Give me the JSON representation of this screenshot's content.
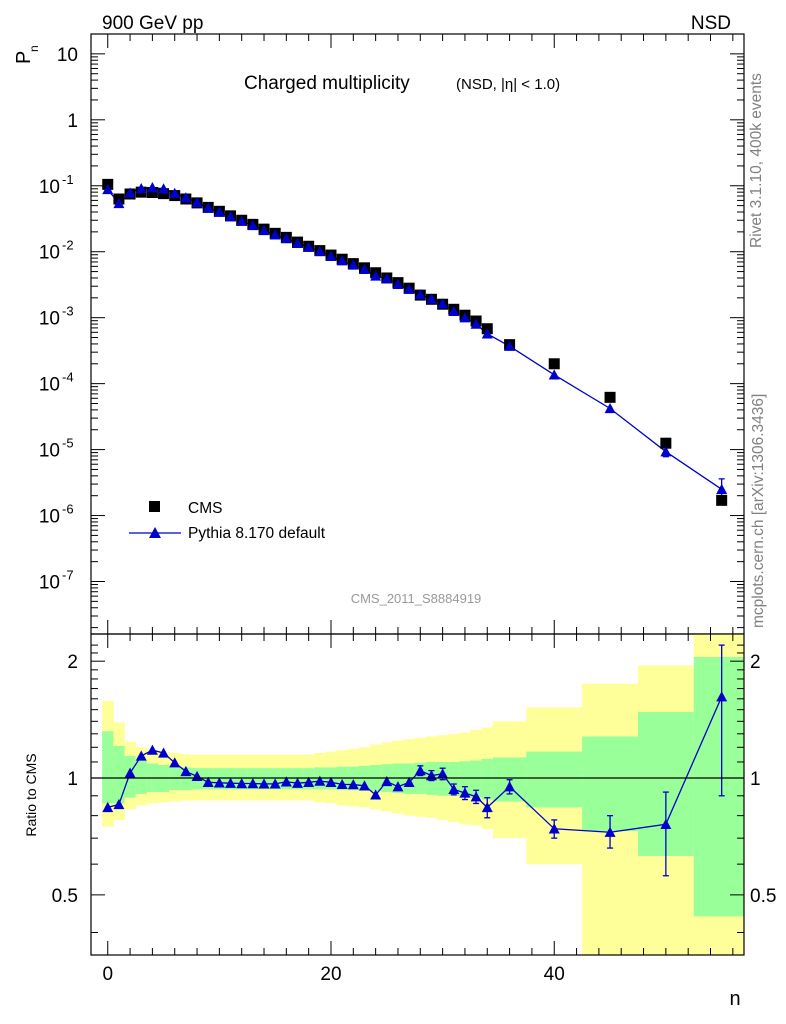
{
  "header": {
    "left": "900 GeV pp",
    "right": "NSD"
  },
  "side_text": {
    "rivet": "Rivet 3.1.10,  400k events",
    "source": "mcplots.cern.ch [arXiv:1306.3436]"
  },
  "analysis_id": "CMS_2011_S8884919",
  "colors": {
    "mc": "#0000cc",
    "data": "#000000",
    "band_inner": "#99ff99",
    "band_outer": "#ffff99"
  },
  "chart_data": [
    {
      "type": "scatter",
      "panel": "main",
      "title": {
        "main": "Charged multiplicity",
        "sub": "(NSD, |η| < 1.0)"
      },
      "ylabel": "P",
      "ylabel_sub": "n",
      "yscale": "log",
      "ylim": [
        1.6e-08,
        20
      ],
      "ytick_labels": [
        {
          "value": 10,
          "base": "10",
          "exp": ""
        },
        {
          "value": 1,
          "base": "1",
          "exp": ""
        },
        {
          "value": 0.1,
          "base": "10",
          "exp": "-1"
        },
        {
          "value": 0.01,
          "base": "10",
          "exp": "-2"
        },
        {
          "value": 0.001,
          "base": "10",
          "exp": "-3"
        },
        {
          "value": 0.0001,
          "base": "10",
          "exp": "-4"
        },
        {
          "value": 1e-05,
          "base": "10",
          "exp": "-5"
        },
        {
          "value": 1e-06,
          "base": "10",
          "exp": "-6"
        },
        {
          "value": 1e-07,
          "base": "10",
          "exp": "-7"
        }
      ],
      "legend": [
        {
          "name": "CMS",
          "marker": "square"
        },
        {
          "name": "Pythia 8.170 default",
          "marker": "triangle"
        }
      ],
      "series": [
        {
          "name": "CMS",
          "x": [
            0,
            1,
            2,
            3,
            4,
            5,
            6,
            7,
            8,
            9,
            10,
            11,
            12,
            13,
            14,
            15,
            16,
            17,
            18,
            19,
            20,
            21,
            22,
            23,
            24,
            25,
            26,
            27,
            28,
            29,
            30,
            31,
            32,
            33,
            34,
            36,
            40,
            45,
            50,
            55
          ],
          "y": [
            0.105,
            0.063,
            0.075,
            0.08,
            0.079,
            0.076,
            0.071,
            0.063,
            0.055,
            0.047,
            0.041,
            0.035,
            0.03,
            0.026,
            0.022,
            0.019,
            0.0165,
            0.014,
            0.0121,
            0.0104,
            0.0089,
            0.0077,
            0.0066,
            0.0057,
            0.0048,
            0.004,
            0.0034,
            0.0028,
            0.0022,
            0.0019,
            0.0016,
            0.00134,
            0.00109,
            0.00089,
            0.00068,
            0.00039,
            0.0002,
            6.2e-05,
            1.25e-05,
            1.7e-06
          ]
        },
        {
          "name": "Pythia 8.170 default",
          "x": [
            0,
            1,
            2,
            3,
            4,
            5,
            6,
            7,
            8,
            9,
            10,
            11,
            12,
            13,
            14,
            15,
            16,
            17,
            18,
            19,
            20,
            21,
            22,
            23,
            24,
            25,
            26,
            27,
            28,
            29,
            30,
            31,
            32,
            33,
            34,
            36,
            40,
            45,
            50,
            55
          ],
          "y": [
            0.088,
            0.054,
            0.078,
            0.091,
            0.094,
            0.09,
            0.077,
            0.066,
            0.056,
            0.046,
            0.04,
            0.034,
            0.029,
            0.025,
            0.021,
            0.018,
            0.0158,
            0.0134,
            0.0117,
            0.0101,
            0.0085,
            0.0073,
            0.0063,
            0.0054,
            0.0043,
            0.0039,
            0.0032,
            0.0027,
            0.00225,
            0.00193,
            0.00163,
            0.00125,
            0.001,
            0.0008,
            0.00057,
            0.00037,
            0.000136,
            4.2e-05,
            9.3e-06,
            2.5e-06
          ],
          "yerr_x": [
            50,
            55
          ],
          "yerr_low": [
            7.8e-06,
            1.8e-06
          ],
          "yerr_high": [
            1.12e-05,
            3.6e-06
          ]
        }
      ]
    },
    {
      "type": "line",
      "panel": "ratio",
      "ylabel": "Ratio to CMS",
      "xlabel": "n",
      "xlim": [
        -1.5,
        57
      ],
      "ylim": [
        0.35,
        2.35
      ],
      "xticks": [
        0,
        20,
        40
      ],
      "ytick_labels": [
        0.5,
        1,
        2
      ],
      "reference": 1,
      "series": [
        {
          "name": "Pythia 8.170 default / CMS",
          "x": [
            0,
            1,
            2,
            3,
            4,
            5,
            6,
            7,
            8,
            9,
            10,
            11,
            12,
            13,
            14,
            15,
            16,
            17,
            18,
            19,
            20,
            21,
            22,
            23,
            24,
            25,
            26,
            27,
            28,
            29,
            30,
            31,
            32,
            33,
            34,
            36,
            40,
            45,
            50,
            55
          ],
          "y": [
            0.84,
            0.855,
            1.03,
            1.14,
            1.18,
            1.16,
            1.095,
            1.04,
            1.01,
            0.975,
            0.972,
            0.97,
            0.968,
            0.968,
            0.966,
            0.966,
            0.978,
            0.97,
            0.975,
            0.982,
            0.975,
            0.963,
            0.962,
            0.955,
            0.905,
            0.98,
            0.95,
            0.975,
            1.045,
            1.015,
            1.025,
            0.935,
            0.915,
            0.895,
            0.84,
            0.95,
            0.74,
            0.725,
            0.76,
            1.62
          ],
          "err_x": [
            28,
            29,
            30,
            31,
            32,
            33,
            34,
            36,
            40,
            45,
            50,
            55
          ],
          "err_low": [
            1.015,
            0.985,
            0.99,
            0.905,
            0.88,
            0.86,
            0.79,
            0.91,
            0.7,
            0.66,
            0.56,
            0.9
          ],
          "err_high": [
            1.075,
            1.045,
            1.06,
            0.965,
            0.95,
            0.93,
            0.89,
            0.99,
            0.78,
            0.8,
            0.92,
            2.2
          ]
        }
      ],
      "bands": {
        "bin_edges": [
          -0.5,
          0.5,
          1.5,
          2.5,
          3.5,
          4.5,
          5.5,
          6.5,
          7.5,
          8.5,
          9.5,
          10.5,
          11.5,
          12.5,
          13.5,
          14.5,
          15.5,
          16.5,
          17.5,
          18.5,
          19.5,
          20.5,
          21.5,
          22.5,
          23.5,
          24.5,
          25.5,
          26.5,
          27.5,
          28.5,
          29.5,
          30.5,
          31.5,
          32.5,
          33.5,
          34.5,
          37.5,
          42.5,
          47.5,
          52.5,
          57
        ],
        "inner_low": [
          0.86,
          0.86,
          0.89,
          0.91,
          0.92,
          0.92,
          0.93,
          0.93,
          0.935,
          0.935,
          0.935,
          0.935,
          0.935,
          0.935,
          0.935,
          0.935,
          0.935,
          0.935,
          0.935,
          0.935,
          0.935,
          0.93,
          0.93,
          0.93,
          0.925,
          0.92,
          0.915,
          0.91,
          0.91,
          0.905,
          0.9,
          0.9,
          0.895,
          0.89,
          0.88,
          0.87,
          0.84,
          0.73,
          0.63,
          0.44
        ],
        "inner_high": [
          1.32,
          1.21,
          1.14,
          1.11,
          1.09,
          1.08,
          1.07,
          1.065,
          1.06,
          1.06,
          1.06,
          1.06,
          1.06,
          1.06,
          1.06,
          1.06,
          1.06,
          1.06,
          1.06,
          1.065,
          1.065,
          1.07,
          1.07,
          1.075,
          1.08,
          1.085,
          1.09,
          1.09,
          1.095,
          1.1,
          1.1,
          1.1,
          1.105,
          1.11,
          1.12,
          1.13,
          1.17,
          1.28,
          1.48,
          2.05
        ],
        "outer_low": [
          0.75,
          0.78,
          0.83,
          0.85,
          0.86,
          0.865,
          0.87,
          0.875,
          0.875,
          0.875,
          0.875,
          0.875,
          0.875,
          0.875,
          0.875,
          0.875,
          0.875,
          0.875,
          0.875,
          0.865,
          0.86,
          0.85,
          0.845,
          0.84,
          0.83,
          0.82,
          0.81,
          0.8,
          0.795,
          0.79,
          0.78,
          0.77,
          0.76,
          0.755,
          0.74,
          0.7,
          0.6,
          0.35,
          0.35,
          0.35
        ],
        "outer_high": [
          1.58,
          1.39,
          1.24,
          1.2,
          1.18,
          1.165,
          1.16,
          1.15,
          1.15,
          1.15,
          1.15,
          1.15,
          1.15,
          1.15,
          1.15,
          1.15,
          1.15,
          1.15,
          1.15,
          1.16,
          1.17,
          1.18,
          1.19,
          1.2,
          1.22,
          1.235,
          1.25,
          1.26,
          1.27,
          1.28,
          1.29,
          1.3,
          1.31,
          1.33,
          1.35,
          1.4,
          1.52,
          1.75,
          1.95,
          2.35
        ]
      }
    }
  ]
}
